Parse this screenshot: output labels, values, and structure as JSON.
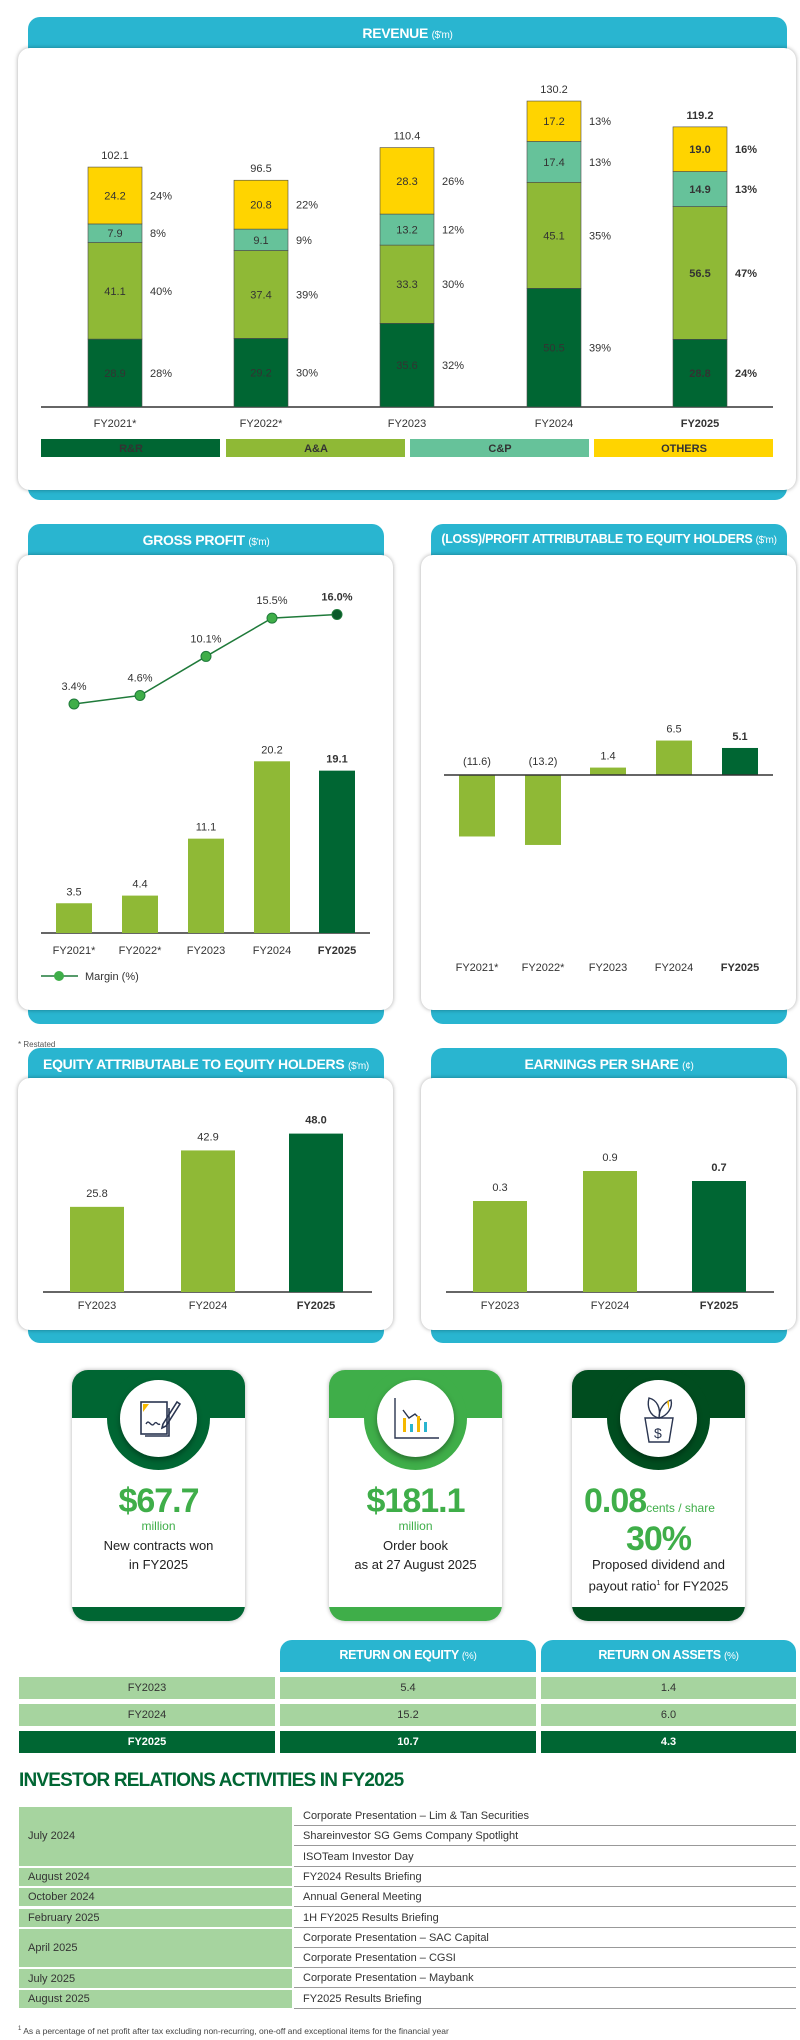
{
  "colors": {
    "header": "#29b5d0",
    "rr": "#006633",
    "aa": "#8fb936",
    "cp": "#66c29a",
    "others": "#ffd400",
    "highlight": "#006633",
    "light_row": "#a6d49f",
    "accent_text": "#3fae49"
  },
  "revenue": {
    "title": "REVENUE",
    "unit": "($'m)"
  },
  "gross_profit": {
    "title": "GROSS PROFIT",
    "unit": "($'m)"
  },
  "profit": {
    "title": "(LOSS)/PROFIT ATTRIBUTABLE TO EQUITY HOLDERS",
    "unit": "($'m)"
  },
  "equity": {
    "title": "EQUITY ATTRIBUTABLE TO EQUITY HOLDERS",
    "unit": "($'m)"
  },
  "eps": {
    "title": "EARNINGS PER SHARE",
    "unit": "(¢)"
  },
  "restated_note": "* Restated",
  "chart_data": [
    {
      "type": "bar",
      "stacked": true,
      "title": "REVENUE ($'m)",
      "categories": [
        "FY2021*",
        "FY2022*",
        "FY2023",
        "FY2024",
        "FY2025"
      ],
      "series": [
        {
          "name": "R&R",
          "values": [
            28.9,
            29.2,
            35.6,
            50.5,
            28.8
          ],
          "labels": [
            "28.9",
            "29.2",
            "35.6",
            "50.5",
            "28.8"
          ],
          "pct": [
            "28%",
            "30%",
            "32%",
            "39%",
            "24%"
          ],
          "color": "#006633"
        },
        {
          "name": "A&A",
          "values": [
            41.1,
            37.4,
            33.3,
            45.1,
            56.5
          ],
          "labels": [
            "41.1",
            "37.4",
            "33.3",
            "45.1",
            "56.5"
          ],
          "pct": [
            "40%",
            "39%",
            "30%",
            "35%",
            "47%"
          ],
          "color": "#8fb936"
        },
        {
          "name": "C&P",
          "values": [
            7.9,
            9.1,
            13.2,
            17.4,
            14.9
          ],
          "labels": [
            "7.9",
            "9.1",
            "13.2",
            "17.4",
            "14.9"
          ],
          "pct": [
            "8%",
            "9%",
            "12%",
            "13%",
            "13%"
          ],
          "color": "#66c29a"
        },
        {
          "name": "OTHERS",
          "values": [
            24.2,
            20.8,
            28.3,
            17.2,
            19.0
          ],
          "labels": [
            "24.2",
            "20.8",
            "28.3",
            "17.2",
            "19.0"
          ],
          "pct": [
            "24%",
            "22%",
            "26%",
            "13%",
            "16%"
          ],
          "color": "#ffd400"
        }
      ],
      "totals": [
        "102.1",
        "96.5",
        "110.4",
        "130.2",
        "119.2"
      ],
      "legend": "bottom"
    },
    {
      "type": "bar+line",
      "title": "GROSS PROFIT ($'m)",
      "categories": [
        "FY2021*",
        "FY2022*",
        "FY2023",
        "FY2024",
        "FY2025"
      ],
      "values": [
        3.5,
        4.4,
        11.1,
        20.2,
        19.1
      ],
      "labels": [
        "3.5",
        "4.4",
        "11.1",
        "20.2",
        "19.1"
      ],
      "line": {
        "name": "Margin (%)",
        "values": [
          3.4,
          4.6,
          10.1,
          15.5,
          16.0
        ],
        "labels": [
          "3.4%",
          "4.6%",
          "10.1%",
          "15.5%",
          "16.0%"
        ]
      },
      "legend": "bottom-left"
    },
    {
      "type": "bar",
      "title": "(LOSS)/PROFIT ATTRIBUTABLE TO EQUITY HOLDERS ($'m)",
      "categories": [
        "FY2021*",
        "FY2022*",
        "FY2023",
        "FY2024",
        "FY2025"
      ],
      "values": [
        -11.6,
        -13.2,
        1.4,
        6.5,
        5.1
      ],
      "labels": [
        "(11.6)",
        "(13.2)",
        "1.4",
        "6.5",
        "5.1"
      ]
    },
    {
      "type": "bar",
      "title": "EQUITY ATTRIBUTABLE TO EQUITY HOLDERS ($'m)",
      "categories": [
        "FY2023",
        "FY2024",
        "FY2025"
      ],
      "values": [
        25.8,
        42.9,
        48.0
      ],
      "labels": [
        "25.8",
        "42.9",
        "48.0"
      ]
    },
    {
      "type": "bar",
      "title": "EARNINGS PER SHARE (¢)",
      "categories": [
        "FY2023",
        "FY2024",
        "FY2025"
      ],
      "values": [
        0.3,
        0.9,
        0.7
      ],
      "labels": [
        "0.3",
        "0.9",
        "0.7"
      ]
    }
  ],
  "cards": [
    {
      "value": "$67.7",
      "unit": "million",
      "line1": "New contracts won",
      "line2": "in FY2025",
      "icon": "contract-signing-icon"
    },
    {
      "value": "$181.1",
      "unit": "million",
      "line1": "Order book",
      "line2": "as at 27 August 2025",
      "icon": "bar-chart-icon"
    },
    {
      "value": "0.08",
      "unit": "cents / share",
      "value2": "30%",
      "line1": "Proposed dividend and",
      "line2": "payout ratio",
      "sup": "1",
      "line2b": " for FY2025",
      "icon": "money-plant-icon"
    }
  ],
  "returns": {
    "headers": [
      {
        "title": "RETURN ON EQUITY",
        "unit": "(%)"
      },
      {
        "title": "RETURN ON ASSETS",
        "unit": "(%)"
      }
    ],
    "rows": [
      {
        "year": "FY2023",
        "roe": "5.4",
        "roa": "1.4"
      },
      {
        "year": "FY2024",
        "roe": "15.2",
        "roa": "6.0"
      },
      {
        "year": "FY2025",
        "roe": "10.7",
        "roa": "4.3"
      }
    ]
  },
  "ir": {
    "title": "INVESTOR RELATIONS ACTIVITIES IN FY2025",
    "groups": [
      {
        "month": "July 2024",
        "events": [
          "Corporate Presentation – Lim & Tan Securities",
          "Shareinvestor SG Gems Company Spotlight",
          "ISOTeam Investor Day"
        ]
      },
      {
        "month": "August 2024",
        "events": [
          "FY2024 Results Briefing"
        ]
      },
      {
        "month": "October 2024",
        "events": [
          "Annual General Meeting"
        ]
      },
      {
        "month": "February 2025",
        "events": [
          "1H FY2025 Results Briefing"
        ]
      },
      {
        "month": "April 2025",
        "events": [
          "Corporate Presentation – SAC Capital",
          "Corporate Presentation – CGSI"
        ]
      },
      {
        "month": "July 2025",
        "events": [
          "Corporate Presentation – Maybank"
        ]
      },
      {
        "month": "August 2025",
        "events": [
          "FY2025 Results Briefing"
        ]
      }
    ]
  },
  "footnote": {
    "sup": "1",
    "text": " As a percentage of net profit after tax excluding non-recurring, one-off and exceptional items for the financial year"
  }
}
